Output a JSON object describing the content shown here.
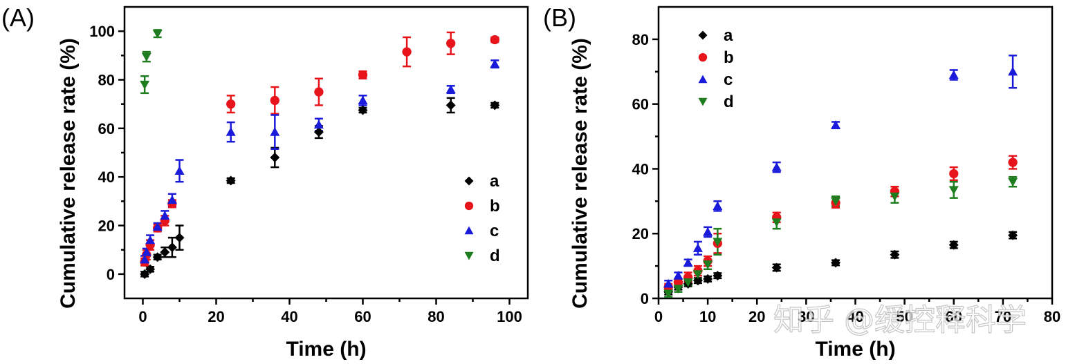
{
  "watermark": "知乎 @缓控释科学",
  "colors": {
    "a": "#000000",
    "b": "#e8141b",
    "c": "#1a1adb",
    "d": "#1e7d1e"
  },
  "chart_data": [
    {
      "panel_label": "(A)",
      "type": "scatter",
      "xlabel": "Time (h)",
      "ylabel": "Cumulative release rate (%)",
      "xlim": [
        -5,
        105
      ],
      "ylim": [
        -10,
        110
      ],
      "xticks": [
        0,
        20,
        40,
        60,
        80,
        100
      ],
      "xminor": [
        10,
        30,
        50,
        70,
        90
      ],
      "yticks": [
        0,
        20,
        40,
        60,
        80,
        100
      ],
      "yminor": [
        10,
        30,
        50,
        70,
        90
      ],
      "legend_position": "center-right",
      "series": [
        {
          "name": "a",
          "marker": "diamond",
          "x": [
            0.5,
            2,
            4,
            6,
            8,
            10,
            24,
            36,
            48,
            60,
            84,
            96
          ],
          "y": [
            0,
            2,
            7,
            9,
            11,
            15,
            38.5,
            48,
            58.5,
            67.5,
            69.5,
            69.5
          ],
          "err": [
            1,
            1,
            1,
            2,
            4,
            5,
            1,
            4,
            2.5,
            1,
            3,
            1
          ]
        },
        {
          "name": "b",
          "marker": "circle",
          "x": [
            0.5,
            1,
            2,
            4,
            6,
            8,
            24,
            36,
            48,
            60,
            72,
            84,
            96
          ],
          "y": [
            5,
            8,
            12,
            19,
            22,
            29,
            70,
            71.5,
            75,
            82,
            91.5,
            95,
            96.5
          ],
          "err": [
            1.5,
            2,
            2,
            1.5,
            2,
            1.5,
            3.5,
            5.5,
            5.5,
            1.5,
            6,
            4.5,
            1
          ]
        },
        {
          "name": "c",
          "marker": "triangle-up",
          "x": [
            0.5,
            1,
            2,
            4,
            6,
            8,
            10,
            24,
            36,
            48,
            60,
            84,
            96
          ],
          "y": [
            6,
            9,
            14,
            19.5,
            24,
            30.5,
            42.5,
            58.5,
            58.5,
            61.5,
            71.5,
            76,
            86.5
          ],
          "err": [
            1.5,
            1.5,
            2,
            1.5,
            2,
            2.5,
            4.5,
            4,
            7,
            2.5,
            2,
            1.5,
            1.5
          ]
        },
        {
          "name": "d",
          "marker": "triangle-down",
          "x": [
            0.5,
            1,
            4
          ],
          "y": [
            78,
            89.5,
            99
          ],
          "err": [
            3.5,
            2,
            1.5
          ]
        }
      ]
    },
    {
      "panel_label": "(B)",
      "type": "scatter",
      "xlabel": "Time (h)",
      "ylabel": "Cumulative release rate (%)",
      "xlim": [
        0,
        80
      ],
      "ylim": [
        0,
        90
      ],
      "xticks": [
        0,
        10,
        20,
        30,
        40,
        50,
        60,
        70,
        80
      ],
      "xminor": [
        5,
        15,
        25,
        35,
        45,
        55,
        65,
        75
      ],
      "yticks": [
        0,
        20,
        40,
        60,
        80
      ],
      "yminor": [
        10,
        30,
        50,
        70
      ],
      "legend_position": "top-left",
      "series": [
        {
          "name": "a",
          "marker": "diamond",
          "x": [
            2,
            4,
            6,
            8,
            10,
            12,
            24,
            36,
            48,
            60,
            72
          ],
          "y": [
            2,
            3.5,
            4.5,
            5.5,
            6,
            7,
            9.5,
            11,
            13.5,
            16.5,
            19.5
          ],
          "err": [
            0.8,
            0.8,
            0.8,
            0.8,
            0.8,
            0.8,
            1,
            0.8,
            1,
            1,
            1
          ]
        },
        {
          "name": "b",
          "marker": "circle",
          "x": [
            2,
            4,
            6,
            8,
            10,
            12,
            24,
            36,
            48,
            60,
            72
          ],
          "y": [
            3.5,
            5,
            6.5,
            8.5,
            11.5,
            17,
            25,
            29.5,
            33,
            38.5,
            42
          ],
          "err": [
            1,
            1,
            1.5,
            1.5,
            1.5,
            3,
            1.5,
            1.5,
            1.5,
            2,
            2
          ]
        },
        {
          "name": "c",
          "marker": "triangle-up",
          "x": [
            2,
            4,
            6,
            8,
            10,
            12,
            24,
            36,
            60,
            72
          ],
          "y": [
            4.5,
            7,
            11,
            15.5,
            20.5,
            28.5,
            40.5,
            53.5,
            69,
            70
          ],
          "err": [
            1,
            1,
            1,
            2,
            1.5,
            1.5,
            1.5,
            1,
            1.5,
            5
          ]
        },
        {
          "name": "d",
          "marker": "triangle-down",
          "x": [
            2,
            4,
            6,
            8,
            10,
            12,
            24,
            36,
            48,
            60,
            72
          ],
          "y": [
            1.5,
            3,
            5,
            7.5,
            10.5,
            17.5,
            23.5,
            30,
            31.5,
            33.5,
            36
          ],
          "err": [
            1,
            1,
            1,
            1.5,
            1.5,
            4,
            2,
            1.5,
            2,
            2.5,
            1.5
          ]
        }
      ]
    }
  ]
}
